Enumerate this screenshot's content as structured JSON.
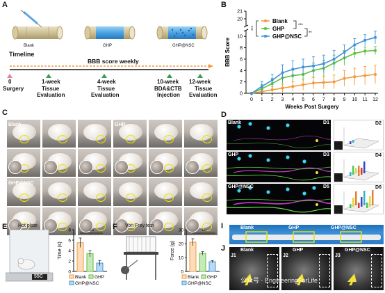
{
  "panels": {
    "a": "A",
    "b": "B",
    "c": "C",
    "d": "D",
    "e": "E",
    "f": "F",
    "i": "I",
    "j": "J"
  },
  "scaffolds": [
    "Blank",
    "GHP",
    "GHP@NSC"
  ],
  "timeline": {
    "title": "Timeline",
    "bbb_note": "BBB score weekly",
    "ticks": [
      {
        "label": "0",
        "desc": [
          "Surgery"
        ],
        "color": "#e8809c"
      },
      {
        "label": "1-week",
        "desc": [
          "Tissue",
          "Evaluation"
        ],
        "color": "#36a04a"
      },
      {
        "label": "4-week",
        "desc": [
          "Tissue",
          "Evaluation"
        ],
        "color": "#36a04a"
      },
      {
        "label": "10-week",
        "desc": [
          "BDA&CTB",
          "Injection"
        ],
        "color": "#36a04a"
      },
      {
        "label": "12-week",
        "desc": [
          "Tissue",
          "Evaluation"
        ],
        "color": "#36a04a"
      }
    ]
  },
  "chart_data": {
    "type": "line",
    "xlabel": "Weeks Post Surgery",
    "ylabel": "BBB Score",
    "x": [
      0,
      1,
      2,
      3,
      4,
      5,
      6,
      7,
      8,
      9,
      10,
      11,
      12
    ],
    "ylim": [
      0,
      21
    ],
    "yticks": [
      0,
      2,
      4,
      6,
      8,
      10,
      20,
      21
    ],
    "axis_break": [
      11,
      19
    ],
    "series": [
      {
        "name": "Blank",
        "color": "#f39a3c",
        "values": [
          0,
          0.3,
          0.6,
          0.9,
          1.2,
          1.5,
          1.8,
          1.9,
          2.0,
          2.6,
          2.9,
          3.1,
          3.3
        ],
        "err": [
          0,
          0.4,
          0.6,
          0.7,
          0.8,
          1.0,
          1.0,
          1.1,
          1.2,
          1.4,
          1.5,
          1.6,
          1.6
        ]
      },
      {
        "name": "GHP",
        "color": "#5cbf3a",
        "values": [
          0,
          0.8,
          1.7,
          2.7,
          3.1,
          3.3,
          4.0,
          4.4,
          5.3,
          6.2,
          7.0,
          7.4,
          7.5
        ],
        "err": [
          0,
          0.7,
          0.9,
          1.0,
          1.1,
          1.2,
          1.3,
          1.4,
          1.4,
          1.3,
          0.8,
          0.7,
          0.7
        ]
      },
      {
        "name": "GHP@NSC",
        "color": "#3f92d8",
        "values": [
          0,
          1.2,
          2.3,
          3.6,
          4.2,
          4.6,
          4.8,
          5.2,
          6.0,
          7.2,
          8.5,
          9.3,
          9.8
        ],
        "err": [
          0,
          0.9,
          1.0,
          1.4,
          1.5,
          1.4,
          1.6,
          1.5,
          1.5,
          1.3,
          1.1,
          1.0,
          1.1
        ]
      }
    ],
    "sig": [
      "***",
      "***",
      "**"
    ]
  },
  "c": {
    "groups": [
      "Blank",
      "GHP",
      "GHP@NSC"
    ]
  },
  "d": {
    "rows": [
      {
        "label": "Blank",
        "left": "D1",
        "right": "D2"
      },
      {
        "label": "GHP",
        "left": "D3",
        "right": "D4"
      },
      {
        "label": "GHP@NSC",
        "left": "D5",
        "right": "D6"
      }
    ]
  },
  "e": {
    "title": "Hot plate",
    "temp": "55C",
    "ylabel": "Time (s)",
    "yticks": [
      0,
      2,
      4,
      6,
      8
    ],
    "ymax": 8,
    "bars": [
      {
        "name": "Blank",
        "value": 5.5,
        "err": 0.9,
        "color": "#f39a3c"
      },
      {
        "name": "GHP",
        "value": 3.4,
        "err": 0.6,
        "color": "#5cbf3a"
      },
      {
        "name": "GHP@NSC",
        "value": 1.6,
        "err": 0.5,
        "color": "#3f92d8"
      }
    ],
    "sig": "***"
  },
  "f": {
    "title": "Von Frey test",
    "ylabel": "Force (g)",
    "yticks": [
      0,
      10,
      20,
      30
    ],
    "ymax": 30,
    "bars": [
      {
        "name": "Blank",
        "value": 21,
        "err": 2.5,
        "color": "#f39a3c"
      },
      {
        "name": "GHP",
        "value": 13,
        "err": 1.2,
        "color": "#5cbf3a"
      },
      {
        "name": "GHP@NSC",
        "value": 7,
        "err": 0.8,
        "color": "#3f92d8"
      }
    ],
    "sig": "***"
  },
  "i": {
    "labels": [
      "Blank",
      "GHP",
      "GHP@NSC"
    ]
  },
  "j": {
    "labels": [
      "Blank",
      "GHP",
      "GHP@NSC"
    ],
    "subs": [
      "J1",
      "J2",
      "J3"
    ]
  },
  "watermark": "公众号 · EngineeringForLife"
}
